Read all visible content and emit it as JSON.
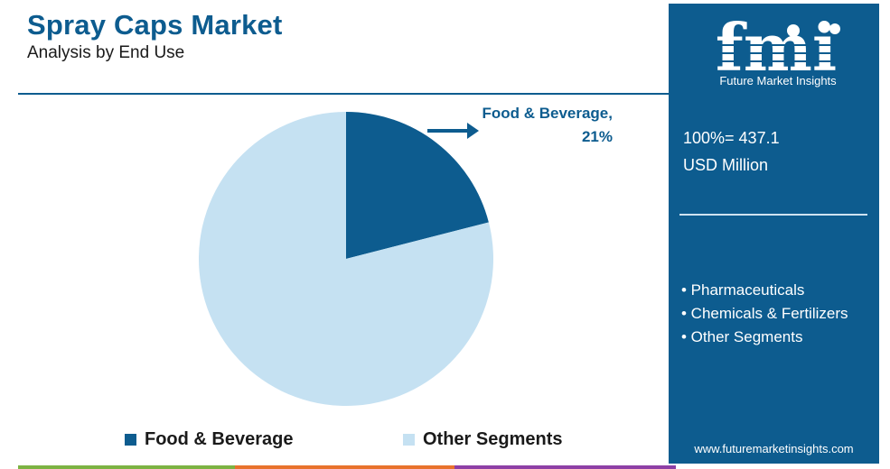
{
  "header": {
    "title": "Spray Caps Market",
    "subtitle": "Analysis by End Use"
  },
  "chart_data": {
    "type": "pie",
    "slices": [
      {
        "label": "Food & Beverage",
        "value": 21,
        "color": "#0d5c8f"
      },
      {
        "label": "Other Segments",
        "value": 79,
        "color": "#c5e1f2"
      }
    ],
    "callout": {
      "label": "Food & Beverage,",
      "value": "21%"
    },
    "legend": [
      {
        "label": "Food & Beverage",
        "color": "#0d5c8f"
      },
      {
        "label": "Other Segments",
        "color": "#c5e1f2"
      }
    ],
    "legend_position": "bottom"
  },
  "sidebar": {
    "logo_text": "fmi",
    "brand": "Future Market Insights",
    "total_line1": "100%= 437.1",
    "total_line2": "USD Million",
    "other_segments": [
      "• Pharmaceuticals",
      "• Chemicals & Fertilizers",
      "• Other Segments"
    ],
    "website": "www.futuremarketinsights.com"
  },
  "colors": {
    "brand_blue": "#0d5c8f",
    "light_blue": "#c5e1f2"
  }
}
